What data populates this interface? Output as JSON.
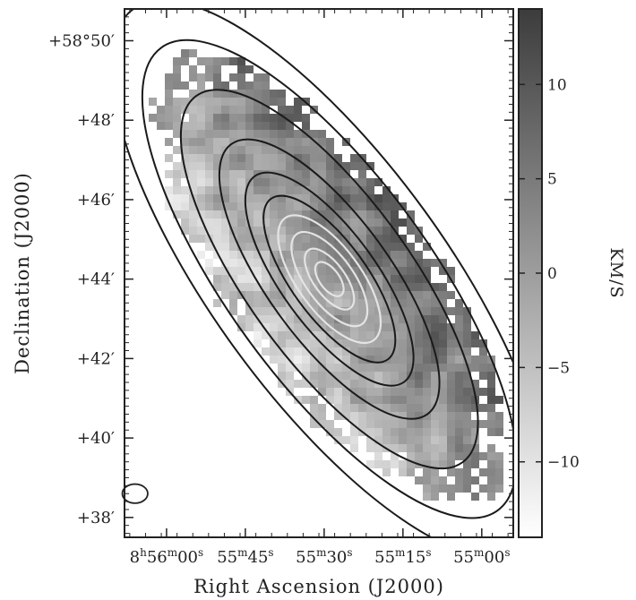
{
  "chart_data": {
    "type": "heatmap",
    "title": "",
    "xlabel": "Right Ascension (J2000)",
    "ylabel": "Declination (J2000)",
    "x_ticks": [
      {
        "label_parts": [
          "8",
          "h",
          "56",
          "m",
          "00",
          "s"
        ],
        "ra_sec": 0
      },
      {
        "label_parts": [
          "",
          "",
          "55",
          "m",
          "45",
          "s"
        ],
        "ra_sec": 15
      },
      {
        "label_parts": [
          "",
          "",
          "55",
          "m",
          "30",
          "s"
        ],
        "ra_sec": 30
      },
      {
        "label_parts": [
          "",
          "",
          "55",
          "m",
          "15",
          "s"
        ],
        "ra_sec": 45
      },
      {
        "label_parts": [
          "",
          "",
          "55",
          "m",
          "00",
          "s"
        ],
        "ra_sec": 60
      }
    ],
    "y_ticks": [
      {
        "label": "+58°50′",
        "dec_arcmin": 50
      },
      {
        "label": "+48′",
        "dec_arcmin": 48
      },
      {
        "label": "+46′",
        "dec_arcmin": 46
      },
      {
        "label": "+44′",
        "dec_arcmin": 44
      },
      {
        "label": "+42′",
        "dec_arcmin": 42
      },
      {
        "label": "+40′",
        "dec_arcmin": 40
      },
      {
        "label": "+38′",
        "dec_arcmin": 38
      }
    ],
    "ylim_arcmin": [
      37.5,
      50.8
    ],
    "xlim_ra_sec": [
      -8,
      66
    ],
    "colorbar": {
      "label": "KM/S",
      "min": -14,
      "max": 14,
      "ticks": [
        10,
        5,
        0,
        -5,
        -10
      ],
      "cmap": [
        "#ffffff",
        "#3c3c3c"
      ]
    },
    "contours": {
      "center": {
        "ra_sec": 31,
        "dec_arcmin": 44.0
      },
      "position_angle_deg": 36,
      "dark_color": "#1a1a1a",
      "light_color": "#e4e4e4",
      "levels": [
        {
          "semi_major_arcmin": 8.4,
          "semi_minor_arcmin": 2.95,
          "tone": "dark"
        },
        {
          "semi_major_arcmin": 7.2,
          "semi_minor_arcmin": 2.55,
          "tone": "dark"
        },
        {
          "semi_major_arcmin": 5.7,
          "semi_minor_arcmin": 2.05,
          "tone": "dark"
        },
        {
          "semi_major_arcmin": 4.2,
          "semi_minor_arcmin": 1.55,
          "tone": "dark"
        },
        {
          "semi_major_arcmin": 3.2,
          "semi_minor_arcmin": 1.2,
          "tone": "dark"
        },
        {
          "semi_major_arcmin": 2.5,
          "semi_minor_arcmin": 0.95,
          "tone": "dark"
        },
        {
          "semi_major_arcmin": 1.9,
          "semi_minor_arcmin": 0.8,
          "tone": "light"
        },
        {
          "semi_major_arcmin": 1.4,
          "semi_minor_arcmin": 0.6,
          "tone": "light"
        },
        {
          "semi_major_arcmin": 0.9,
          "semi_minor_arcmin": 0.4,
          "tone": "light"
        },
        {
          "semi_major_arcmin": 0.5,
          "semi_minor_arcmin": 0.25,
          "tone": "light"
        }
      ]
    },
    "velocity_field": {
      "extent": {
        "ra_sec": [
          -5,
          62
        ],
        "dec_arcmin": [
          39.3,
          48.4
        ]
      },
      "gradient_axis_deg": 36,
      "peak_velocity_kms": 12,
      "scale_arcmin": 3.5,
      "noise_kms": 6
    },
    "beam": {
      "ra_sec": -6,
      "dec_arcmin": 38.6,
      "major_arcmin": 0.32,
      "minor_arcmin": 0.24
    }
  }
}
